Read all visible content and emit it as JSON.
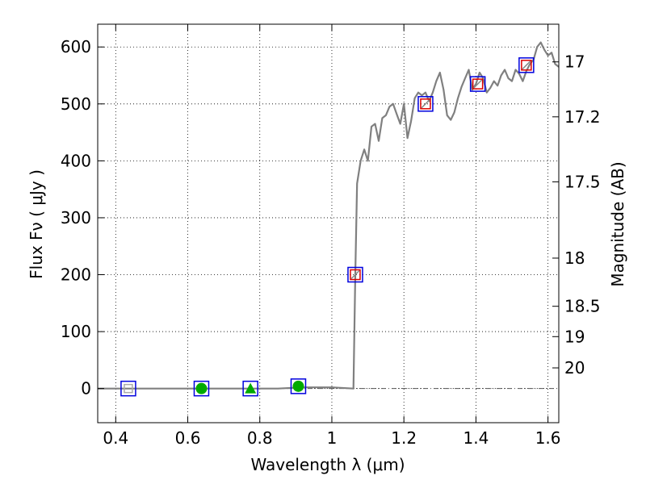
{
  "chart_data": {
    "type": "line",
    "title": "",
    "xlabel": "Wavelength  λ (μm)",
    "ylabel": "Flux  Fν  ( μJy )",
    "y2label": "Magnitude (AB)",
    "xlim": [
      0.35,
      1.63
    ],
    "ylim": [
      -60,
      640
    ],
    "grid": true,
    "x_ticks": [
      {
        "value": 0.4,
        "label": "0.4"
      },
      {
        "value": 0.6,
        "label": "0.6"
      },
      {
        "value": 0.8,
        "label": "0.8"
      },
      {
        "value": 1.0,
        "label": "1"
      },
      {
        "value": 1.2,
        "label": "1.2"
      },
      {
        "value": 1.4,
        "label": "1.4"
      },
      {
        "value": 1.6,
        "label": "1.6"
      }
    ],
    "y_ticks": [
      {
        "value": 0,
        "label": "0"
      },
      {
        "value": 100,
        "label": "100"
      },
      {
        "value": 200,
        "label": "200"
      },
      {
        "value": 300,
        "label": "300"
      },
      {
        "value": 400,
        "label": "400"
      },
      {
        "value": 500,
        "label": "500"
      },
      {
        "value": 600,
        "label": "600"
      }
    ],
    "y2_ticks": [
      {
        "flux": 573.8,
        "label": "17"
      },
      {
        "flux": 477.3,
        "label": "17.2"
      },
      {
        "flux": 363.1,
        "label": "17.5"
      },
      {
        "flux": 229.1,
        "label": "18"
      },
      {
        "flux": 144.5,
        "label": "18.5"
      },
      {
        "flux": 91.2,
        "label": "19"
      },
      {
        "flux": 36.3,
        "label": "20"
      }
    ],
    "series": [
      {
        "style": "model-spectrum",
        "color": "#808080",
        "x": [
          0.35,
          0.6,
          0.85,
          0.92,
          1.0,
          1.06,
          1.065,
          1.07,
          1.08,
          1.09,
          1.1,
          1.11,
          1.12,
          1.13,
          1.14,
          1.15,
          1.16,
          1.17,
          1.18,
          1.19,
          1.2,
          1.21,
          1.22,
          1.23,
          1.24,
          1.25,
          1.26,
          1.27,
          1.28,
          1.29,
          1.3,
          1.31,
          1.32,
          1.33,
          1.34,
          1.35,
          1.36,
          1.37,
          1.38,
          1.39,
          1.4,
          1.41,
          1.42,
          1.43,
          1.44,
          1.45,
          1.46,
          1.47,
          1.48,
          1.49,
          1.5,
          1.51,
          1.52,
          1.53,
          1.54,
          1.55,
          1.56,
          1.57,
          1.58,
          1.59,
          1.6,
          1.61,
          1.62,
          1.63
        ],
        "y": [
          0,
          0,
          0,
          2,
          2,
          0,
          200,
          360,
          400,
          420,
          400,
          460,
          465,
          435,
          475,
          480,
          495,
          500,
          482,
          465,
          500,
          440,
          470,
          510,
          520,
          515,
          520,
          505,
          520,
          540,
          555,
          525,
          480,
          472,
          485,
          510,
          530,
          545,
          560,
          525,
          535,
          555,
          545,
          520,
          528,
          540,
          532,
          550,
          560,
          545,
          540,
          560,
          553,
          540,
          558,
          570,
          578,
          600,
          608,
          595,
          585,
          590,
          570,
          565
        ]
      },
      {
        "style": "measured-points",
        "color": "#00aa00",
        "x": [
          0.638,
          0.774,
          0.907
        ],
        "y": [
          0,
          0,
          4
        ],
        "markers": [
          "circle",
          "triangle",
          "circle"
        ]
      },
      {
        "style": "model-boxes",
        "color": "#0000dd",
        "x": [
          0.435,
          0.638,
          0.774,
          0.907,
          1.065,
          1.26,
          1.405,
          1.54
        ],
        "y": [
          0,
          0,
          0,
          4,
          200,
          500,
          535,
          568
        ]
      },
      {
        "style": "data-boxes",
        "color": "#dd0000",
        "x": [
          1.065,
          1.26,
          1.405,
          1.54
        ],
        "y": [
          200,
          500,
          535,
          568
        ]
      },
      {
        "style": "upper-limit-boxes",
        "color": "#aaaaaa",
        "x": [
          0.435
        ],
        "y": [
          0
        ]
      }
    ]
  }
}
